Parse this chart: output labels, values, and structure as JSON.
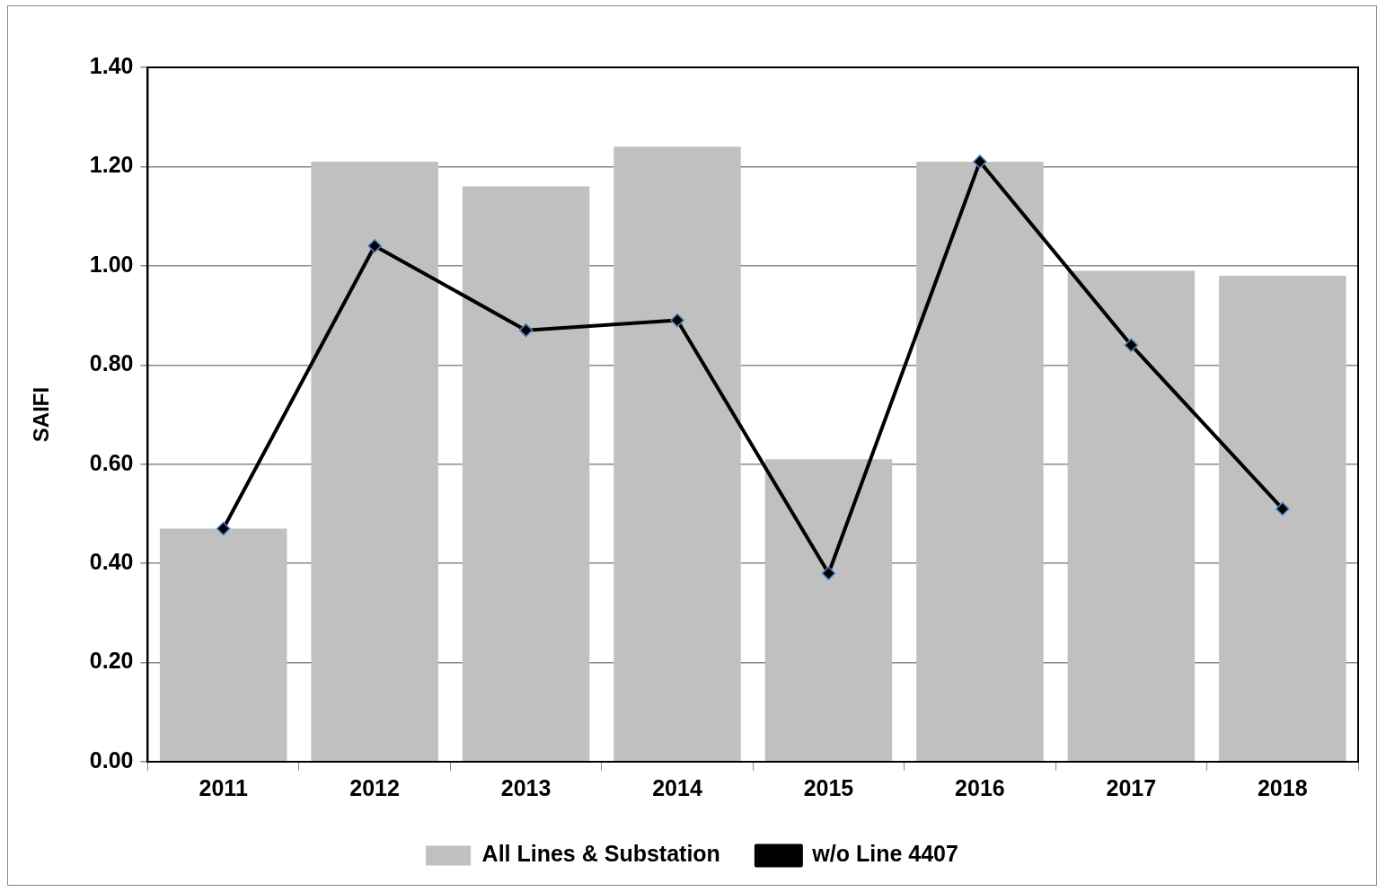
{
  "chart_data": {
    "type": "bar",
    "ylabel": "SAIFI",
    "categories": [
      "2011",
      "2012",
      "2013",
      "2014",
      "2015",
      "2016",
      "2017",
      "2018"
    ],
    "series": [
      {
        "name": "All Lines & Substation",
        "color": "#c0c0c0",
        "values": [
          0.47,
          1.21,
          1.16,
          1.24,
          0.61,
          1.21,
          0.99,
          0.98
        ]
      },
      {
        "name": "w/o Line 4407",
        "type": "line",
        "color": "#000000",
        "values": [
          0.47,
          1.04,
          0.87,
          0.89,
          0.38,
          1.21,
          0.84,
          0.51
        ]
      }
    ],
    "ylim": [
      0,
      1.4
    ],
    "yticks": [
      {
        "value": 0,
        "label": "0.00"
      },
      {
        "value": 0.2,
        "label": "0.20"
      },
      {
        "value": 0.4,
        "label": "0.40"
      },
      {
        "value": 0.6,
        "label": "0.60"
      },
      {
        "value": 0.8,
        "label": "0.80"
      },
      {
        "value": 1,
        "label": "1.00"
      },
      {
        "value": 1.2,
        "label": "1.20"
      },
      {
        "value": 1.4,
        "label": "1.40"
      }
    ],
    "grid": "y",
    "legend": "bottom",
    "marker": "diamond",
    "line_style": "solid"
  }
}
